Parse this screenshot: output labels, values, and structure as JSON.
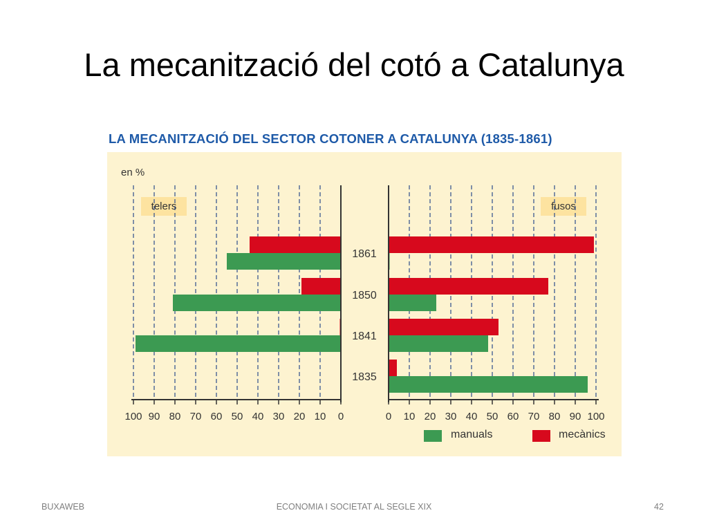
{
  "slide": {
    "title": "La mecanització del cotó a Catalunya",
    "footer_left": "BUXAWEB",
    "footer_center": "ECONOMIA I SOCIETAT AL SEGLE XIX",
    "footer_right": "42"
  },
  "colors": {
    "manuals": "#3c9a52",
    "mecanics": "#d7091d",
    "title_blue": "#1e5aa8",
    "panel_bg": "#fdf3d0",
    "badge_bg": "#fde3a0"
  },
  "chart_data": {
    "type": "bar",
    "orientation": "horizontal",
    "title": "LA MECANITZACIÓ DEL SECTOR COTONER A CATALUNYA (1835-1861)",
    "unit_label": "en %",
    "categories": [
      "1861",
      "1850",
      "1841",
      "1835"
    ],
    "panels": [
      {
        "name": "telers",
        "direction": "left",
        "xlim": [
          0,
          100
        ],
        "ticks": [
          "100",
          "90",
          "80",
          "70",
          "60",
          "50",
          "40",
          "30",
          "20",
          "10",
          "0"
        ],
        "series": [
          {
            "name": "mecànics",
            "values": [
              44,
              19,
              0.5,
              0
            ]
          },
          {
            "name": "manuals",
            "values": [
              55,
              81,
              99,
              0
            ]
          }
        ]
      },
      {
        "name": "fusos",
        "direction": "right",
        "xlim": [
          0,
          100
        ],
        "ticks": [
          "0",
          "10",
          "20",
          "30",
          "40",
          "50",
          "60",
          "70",
          "80",
          "90",
          "100"
        ],
        "series": [
          {
            "name": "mecànics",
            "values": [
              99,
              77,
              53,
              4
            ]
          },
          {
            "name": "manuals",
            "values": [
              0.5,
              23,
              48,
              96
            ]
          }
        ]
      }
    ],
    "legend": [
      {
        "name": "manuals",
        "color": "#3c9a52"
      },
      {
        "name": "mecànics",
        "color": "#d7091d"
      }
    ],
    "legend_position": "bottom-right",
    "grid": true
  }
}
